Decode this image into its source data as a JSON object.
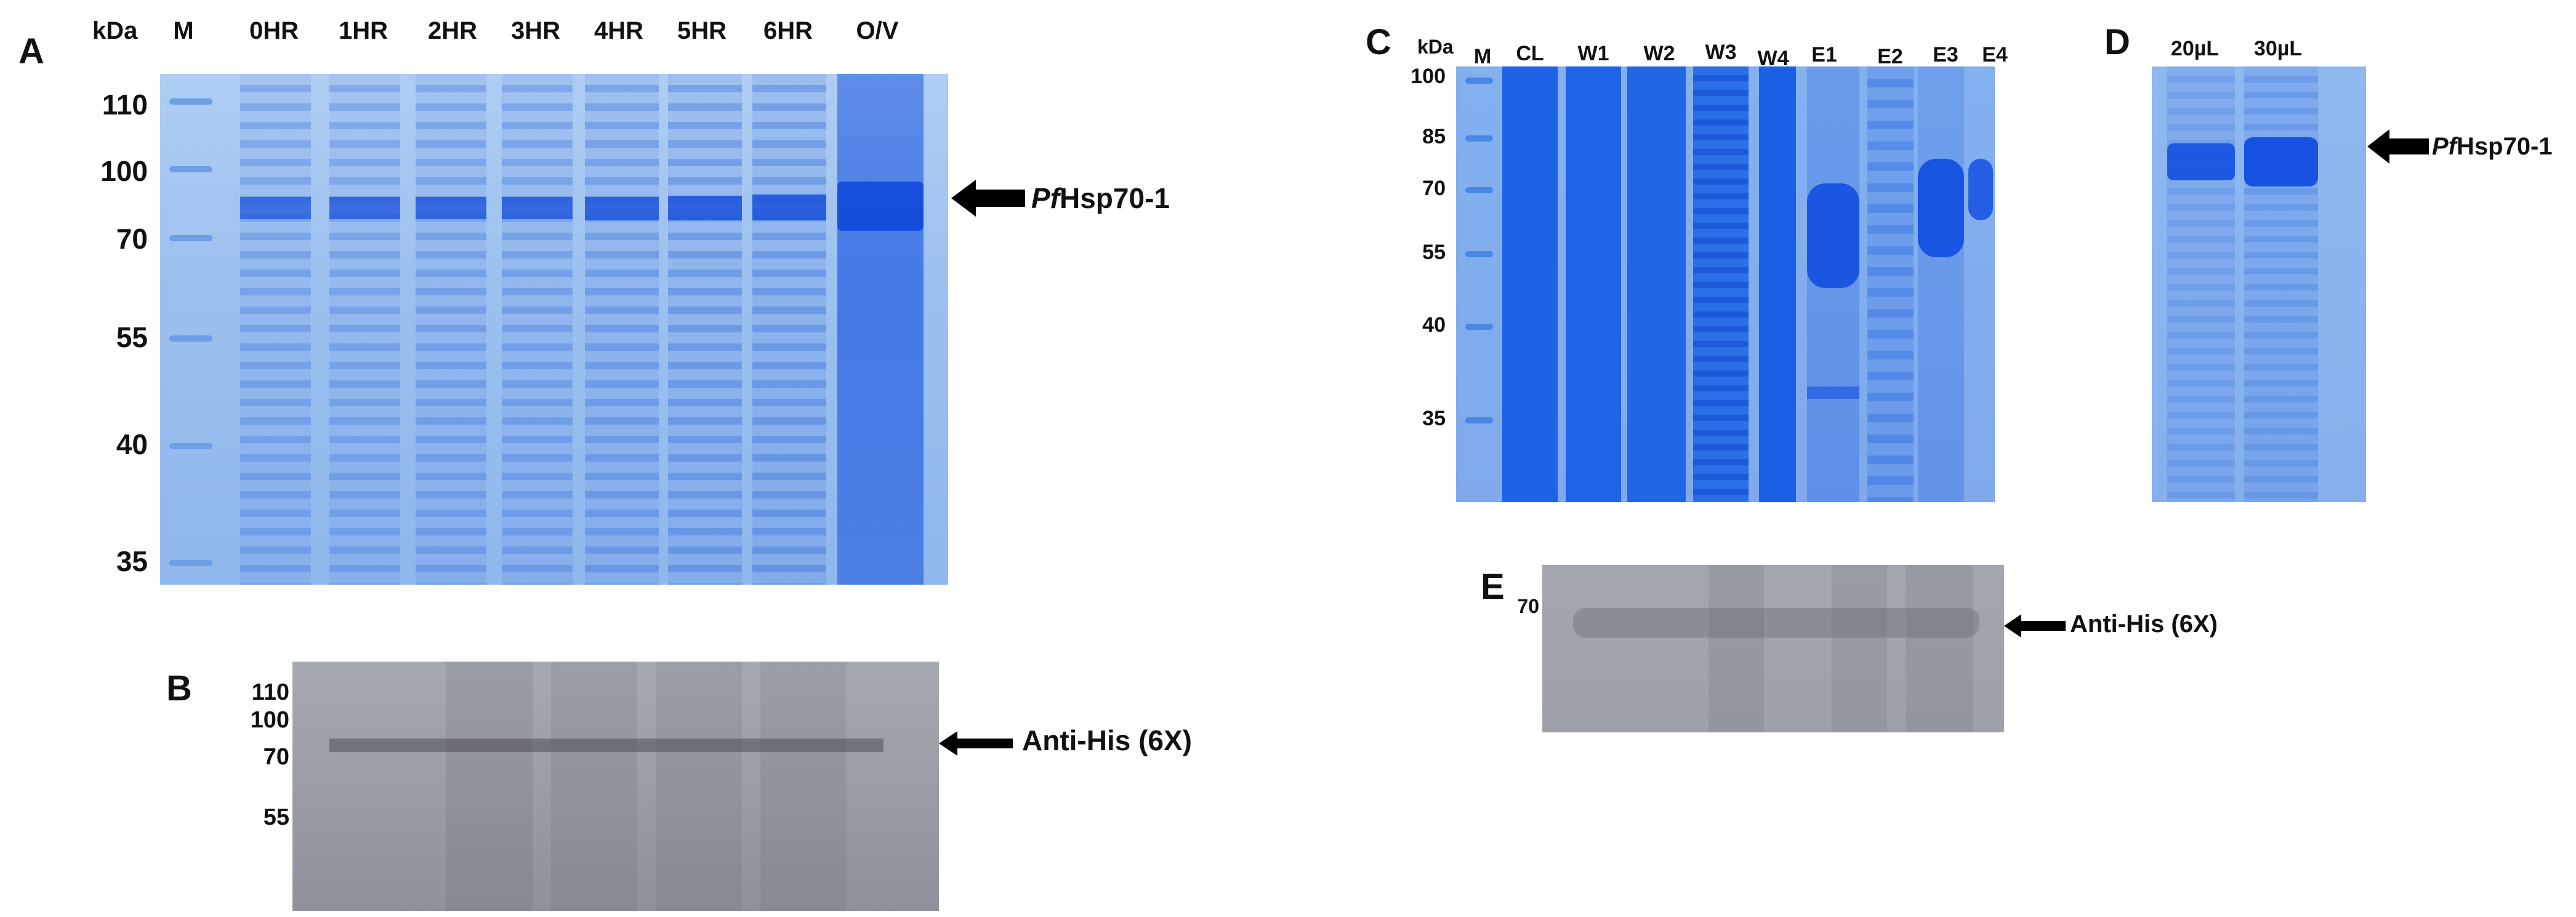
{
  "panels": {
    "A": {
      "letter": "A",
      "unit": "kDa",
      "lanes": [
        "M",
        "0HR",
        "1HR",
        "2HR",
        "3HR",
        "4HR",
        "5HR",
        "6HR",
        "O/V"
      ],
      "markers": [
        "110",
        "100",
        "70",
        "55",
        "40",
        "35"
      ],
      "label_prefix": "Pf",
      "label_suffix": "Hsp70-1"
    },
    "B": {
      "letter": "B",
      "markers": [
        "110",
        "100",
        "70",
        "55"
      ],
      "label": "Anti-His (6X)"
    },
    "C": {
      "letter": "C",
      "unit": "kDa",
      "lanes": [
        "M",
        "CL",
        "W1",
        "W2",
        "W3",
        "W4",
        "E1",
        "E2",
        "E3",
        "E4"
      ],
      "markers": [
        "100",
        "85",
        "70",
        "55",
        "40",
        "35"
      ]
    },
    "D": {
      "letter": "D",
      "lanes": [
        "20µL",
        "30µL"
      ],
      "label_prefix": "Pf",
      "label_suffix": "Hsp70-1"
    },
    "E": {
      "letter": "E",
      "markers": [
        "70"
      ],
      "label": "Anti-His (6X)"
    }
  },
  "colors": {
    "gel_blue": "#9dc1ef",
    "stain_blue": "#1f5fe0",
    "blot_grey": "#9a9da5",
    "text": "#111111"
  },
  "icons": [
    "arrow-left-icon"
  ]
}
